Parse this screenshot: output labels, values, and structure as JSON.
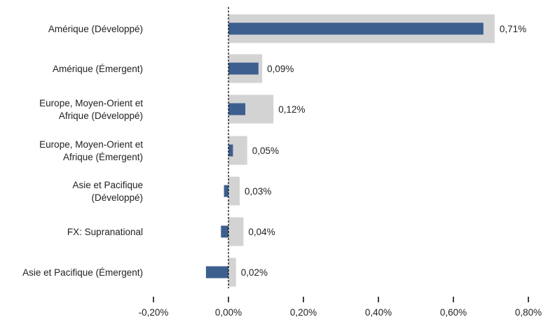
{
  "chart_data": {
    "type": "bar",
    "orientation": "horizontal",
    "categories": [
      [
        "Amérique (Développé)"
      ],
      [
        "Amérique (Émergent)"
      ],
      [
        "Europe, Moyen-Orient et",
        "Afrique (Développé)"
      ],
      [
        "Europe, Moyen-Orient et",
        "Afrique (Émergent)"
      ],
      [
        "Asie et Pacifique",
        "(Développé)"
      ],
      [
        "FX: Supranational"
      ],
      [
        "Asie et Pacifique (Émergent)"
      ]
    ],
    "series": [
      {
        "values": [
          0.71,
          0.09,
          0.12,
          0.05,
          0.03,
          0.04,
          0.02
        ],
        "color": "#d3d3d3"
      },
      {
        "values": [
          0.68,
          0.08,
          0.045,
          0.012,
          -0.012,
          -0.02,
          -0.06
        ],
        "color": "#3d5f8f"
      }
    ],
    "value_labels": [
      "0,71%",
      "0,09%",
      "0,12%",
      "0,05%",
      "0,03%",
      "0,04%",
      "0,02%"
    ],
    "xlim": [
      -0.2,
      0.8
    ],
    "xticks": [
      -0.2,
      0,
      0.2,
      0.4,
      0.6,
      0.8
    ],
    "xtick_labels": [
      "-0,20%",
      "0,00%",
      "0,20%",
      "0,40%",
      "0,60%",
      "0,80%"
    ],
    "zero_line": "dashed",
    "grid": false,
    "legend": "none"
  }
}
